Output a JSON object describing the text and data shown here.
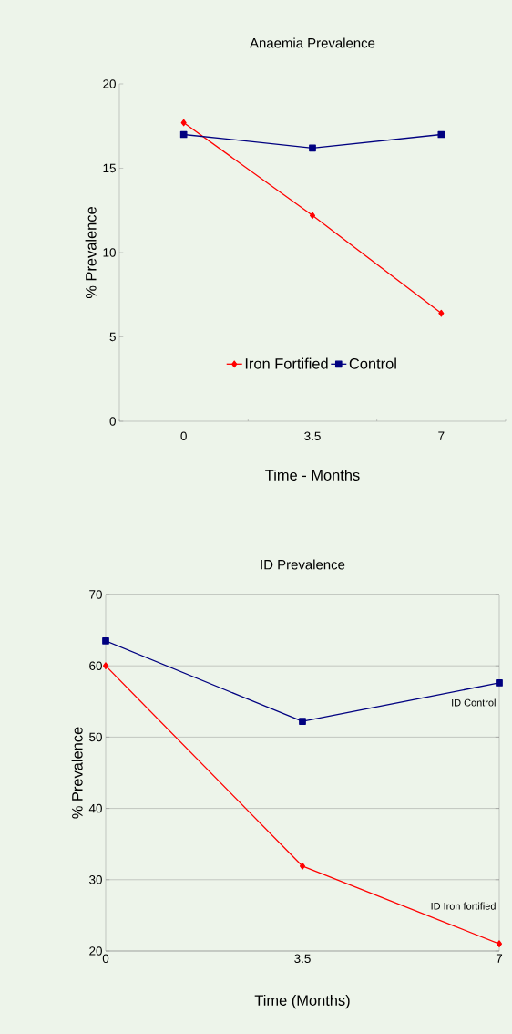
{
  "chart_data": [
    {
      "type": "line",
      "title": "Anaemia Prevalence",
      "xlabel": "Time - Months",
      "ylabel": "% Prevalence",
      "categories": [
        "0",
        "3.5",
        "7"
      ],
      "ylim": [
        0,
        20
      ],
      "yticks": [
        0,
        5,
        10,
        15,
        20
      ],
      "grid": false,
      "legend": "bottom",
      "series": [
        {
          "name": "Iron Fortified",
          "color": "#ff0000",
          "marker": "diamond",
          "values": [
            17.7,
            12.2,
            6.4
          ]
        },
        {
          "name": "Control",
          "color": "#000080",
          "marker": "square",
          "values": [
            17.0,
            16.2,
            17.0
          ]
        }
      ]
    },
    {
      "type": "line",
      "title": "ID Prevalence",
      "xlabel": "Time (Months)",
      "ylabel": "% Prevalence",
      "x": [
        0,
        3.5,
        7
      ],
      "xlim": [
        0,
        7
      ],
      "xticks": [
        0,
        3.5,
        7
      ],
      "ylim": [
        20,
        70
      ],
      "yticks": [
        20,
        30,
        40,
        50,
        60,
        70
      ],
      "grid": "y",
      "legend": false,
      "series": [
        {
          "name": "ID Control",
          "color": "#000080",
          "marker": "square",
          "values": [
            63.5,
            52.2,
            57.6
          ]
        },
        {
          "name": "ID Iron fortified",
          "color": "#ff0000",
          "marker": "diamond",
          "values": [
            60.0,
            31.9,
            21.0
          ]
        }
      ]
    }
  ]
}
